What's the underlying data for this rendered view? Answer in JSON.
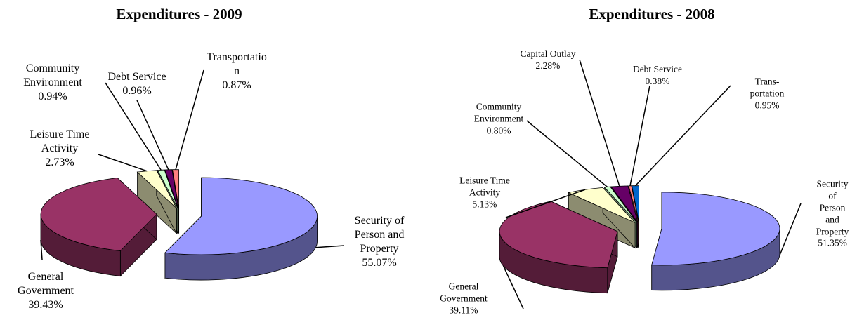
{
  "chart_data": [
    {
      "type": "pie",
      "title": "Expenditures - 2009",
      "categories": [
        "Security of\nPerson and\nProperty",
        "General\nGovernment",
        "Leisure Time\nActivity",
        "Community\nEnvironment",
        "Debt Service",
        "Transportatio\nn"
      ],
      "values": [
        55.07,
        39.43,
        2.73,
        0.94,
        0.96,
        0.87
      ],
      "value_labels": [
        "55.07%",
        "39.43%",
        "2.73%",
        "0.94%",
        "0.96%",
        "0.87%"
      ],
      "colors": [
        "#9999ff",
        "#993366",
        "#ffffcc",
        "#ccffcc",
        "#660066",
        "#ff8080"
      ]
    },
    {
      "type": "pie",
      "title": "Expenditures - 2008",
      "categories": [
        "Security of\nPerson and\nProperty",
        "General\nGovernment",
        "Leisure Time\nActivity",
        "Community\nEnvironment",
        "Capital Outlay",
        "Debt Service",
        "Trans-\nportation"
      ],
      "values": [
        51.35,
        39.11,
        5.13,
        0.8,
        2.28,
        0.38,
        0.95
      ],
      "value_labels": [
        "51.35%",
        "39.11%",
        "5.13%",
        "0.80%",
        "2.28%",
        "0.38%",
        "0.95%"
      ],
      "colors": [
        "#9999ff",
        "#993366",
        "#ffffcc",
        "#ccffcc",
        "#660066",
        "#ff8080",
        "#0066cc"
      ]
    }
  ]
}
